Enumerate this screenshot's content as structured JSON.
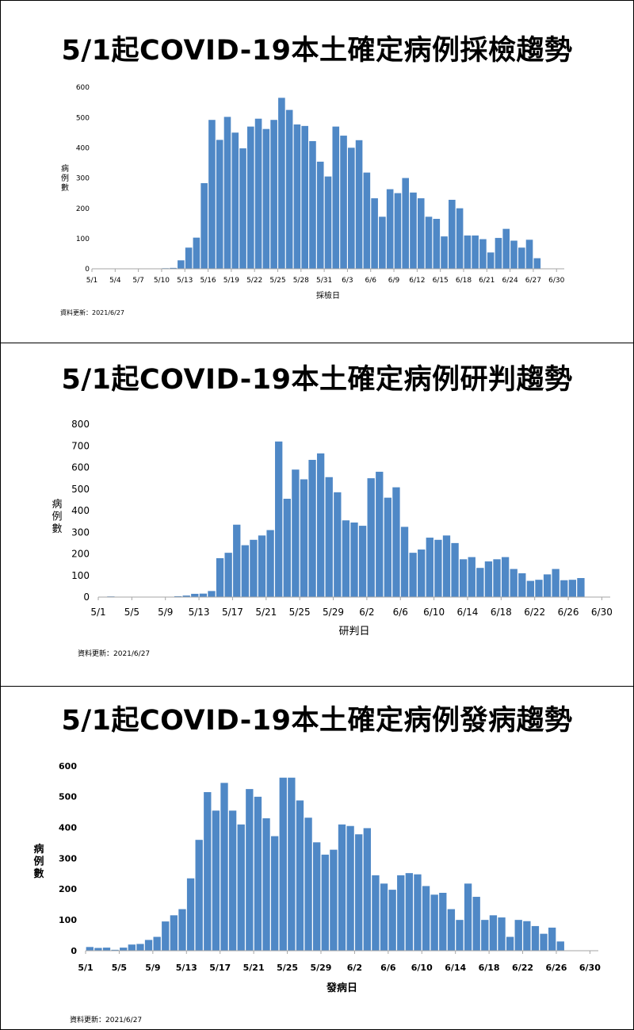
{
  "chart_data": [
    {
      "type": "bar",
      "title": "5/1起COVID-19本土確定病例採檢趨勢",
      "xlabel": "採檢日",
      "ylabel": "病例數",
      "ylim": [
        0,
        600
      ],
      "yticks": [
        0,
        100,
        200,
        300,
        400,
        500,
        600
      ],
      "xticks": [
        "5/1",
        "5/4",
        "5/7",
        "5/10",
        "5/13",
        "5/16",
        "5/19",
        "5/22",
        "5/25",
        "5/28",
        "5/31",
        "6/3",
        "6/6",
        "6/9",
        "6/12",
        "6/15",
        "6/18",
        "6/21",
        "6/24",
        "6/27",
        "6/30"
      ],
      "xtick_step": 3,
      "start_date": "5/1",
      "num_days": 61,
      "values": [
        0,
        0,
        0,
        0,
        0,
        0,
        0,
        0,
        0,
        2,
        3,
        28,
        70,
        103,
        283,
        492,
        426,
        502,
        450,
        398,
        470,
        496,
        462,
        492,
        565,
        525,
        477,
        472,
        422,
        354,
        305,
        470,
        440,
        400,
        425,
        318,
        233,
        172,
        263,
        250,
        300,
        252,
        233,
        172,
        165,
        107,
        228,
        200,
        110,
        110,
        98,
        54,
        102,
        132,
        93,
        70,
        96,
        35,
        0,
        0,
        0
      ],
      "update_text": "資料更新：2021/6/27"
    },
    {
      "type": "bar",
      "title": "5/1起COVID-19本土確定病例研判趨勢",
      "xlabel": "研判日",
      "ylabel": "病例數",
      "ylim": [
        0,
        800
      ],
      "yticks": [
        0,
        100,
        200,
        300,
        400,
        500,
        600,
        700,
        800
      ],
      "xticks": [
        "5/1",
        "5/5",
        "5/9",
        "5/13",
        "5/17",
        "5/21",
        "5/25",
        "5/29",
        "6/2",
        "6/6",
        "6/10",
        "6/14",
        "6/18",
        "6/22",
        "6/26",
        "6/30"
      ],
      "xtick_step": 4,
      "start_date": "5/1",
      "num_days": 61,
      "values": [
        0,
        3,
        0,
        0,
        0,
        0,
        0,
        0,
        0,
        4,
        7,
        15,
        16,
        28,
        180,
        205,
        335,
        240,
        265,
        285,
        310,
        720,
        455,
        590,
        545,
        635,
        665,
        555,
        485,
        355,
        345,
        330,
        550,
        580,
        460,
        508,
        325,
        205,
        220,
        275,
        265,
        285,
        250,
        175,
        185,
        135,
        165,
        175,
        185,
        130,
        110,
        75,
        80,
        105,
        130,
        78,
        80,
        88,
        0,
        0,
        0
      ],
      "update_text": "資料更新：2021/6/27"
    },
    {
      "type": "bar",
      "title": "5/1起COVID-19本土確定病例發病趨勢",
      "xlabel": "發病日",
      "ylabel": "病例數",
      "ylim": [
        0,
        600
      ],
      "yticks": [
        0,
        100,
        200,
        300,
        400,
        500,
        600
      ],
      "xticks": [
        "5/1",
        "5/5",
        "5/9",
        "5/13",
        "5/17",
        "5/21",
        "5/25",
        "5/29",
        "6/2",
        "6/6",
        "6/10",
        "6/14",
        "6/18",
        "6/22",
        "6/26",
        "6/30"
      ],
      "xtick_step": 4,
      "start_date": "5/1",
      "num_days": 61,
      "values": [
        12,
        9,
        10,
        3,
        10,
        20,
        22,
        35,
        45,
        95,
        115,
        135,
        235,
        360,
        515,
        455,
        545,
        455,
        410,
        525,
        500,
        430,
        372,
        562,
        562,
        488,
        432,
        352,
        312,
        328,
        410,
        405,
        378,
        398,
        245,
        218,
        198,
        245,
        252,
        248,
        210,
        182,
        188,
        135,
        100,
        218,
        175,
        100,
        115,
        108,
        45,
        100,
        96,
        80,
        55,
        75,
        30,
        0,
        0,
        0,
        0
      ],
      "update_text": "資料更新：2021/6/27"
    }
  ]
}
